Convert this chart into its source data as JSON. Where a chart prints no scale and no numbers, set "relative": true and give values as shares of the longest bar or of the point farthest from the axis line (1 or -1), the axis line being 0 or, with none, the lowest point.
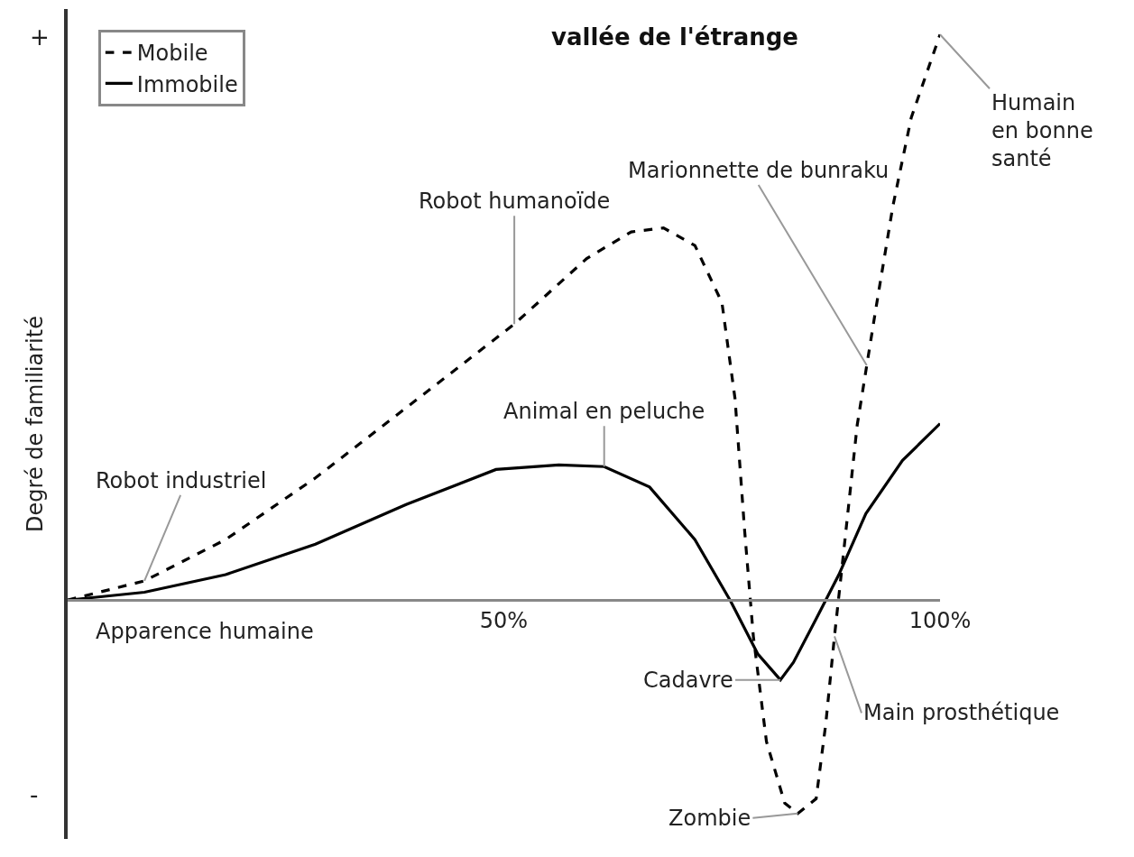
{
  "chart_data": {
    "type": "line",
    "relative": true,
    "xlabel": "Apparence humaine",
    "ylabel": "Degré de familiarité",
    "xlim": [
      0,
      100
    ],
    "xticks": [
      {
        "value": 50,
        "label": "50%"
      },
      {
        "value": 100,
        "label": "100%"
      }
    ],
    "series": [
      {
        "name": "Mobile",
        "color": "#000000",
        "line_style": "dashed",
        "x": [
          0,
          8.8,
          18.1,
          28.4,
          38.8,
          51.2,
          59.5,
          64.6,
          68.3,
          71.9,
          75.0,
          76.5,
          77.6,
          78.6,
          80.1,
          82.2,
          83.7,
          85.8,
          86.9,
          87.9,
          89.0,
          90.5,
          92.6,
          94.6,
          96.7,
          100
        ],
        "values": [
          0,
          0.034,
          0.107,
          0.216,
          0.34,
          0.488,
          0.604,
          0.651,
          0.658,
          0.627,
          0.526,
          0.356,
          0.123,
          -0.064,
          -0.25,
          -0.359,
          -0.377,
          -0.351,
          -0.219,
          -0.064,
          0.092,
          0.309,
          0.511,
          0.697,
          0.853,
          1
        ]
      },
      {
        "name": "Immobile",
        "color": "#000000",
        "line_style": "solid",
        "x": [
          0,
          8.8,
          18.1,
          28.4,
          38.8,
          49.1,
          56.3,
          61.5,
          66.7,
          71.9,
          76.0,
          79.1,
          81.7,
          83.2,
          85.8,
          88.4,
          91.5,
          95.7,
          100
        ],
        "values": [
          0,
          0.014,
          0.045,
          0.099,
          0.169,
          0.231,
          0.239,
          0.236,
          0.2,
          0.107,
          -0.002,
          -0.095,
          -0.141,
          -0.11,
          -0.033,
          0.045,
          0.153,
          0.247,
          0.312
        ]
      }
    ],
    "annotations": [
      "+",
      "-",
      "vallée de l'étrange",
      {
        "text": "Robot industriel",
        "x": 8.8,
        "y": 0.034
      },
      {
        "text": "Robot humanoïde",
        "x": 51.2,
        "y": 0.488
      },
      {
        "text": "Animal en peluche",
        "x": 61.5,
        "y": 0.236
      },
      {
        "text": "Marionnette de bunraku",
        "x": 91.6,
        "y": 0.415
      },
      {
        "text": "Humain en bonne santé",
        "x": 100,
        "y": 1
      },
      {
        "text": "Cadavre",
        "x": 81.7,
        "y": -0.141
      },
      {
        "text": "Zombie",
        "x": 83.7,
        "y": -0.377
      },
      {
        "text": "Main prosthétique",
        "x": 87.9,
        "y": -0.064
      }
    ],
    "legend": "top left",
    "marker": "none"
  }
}
